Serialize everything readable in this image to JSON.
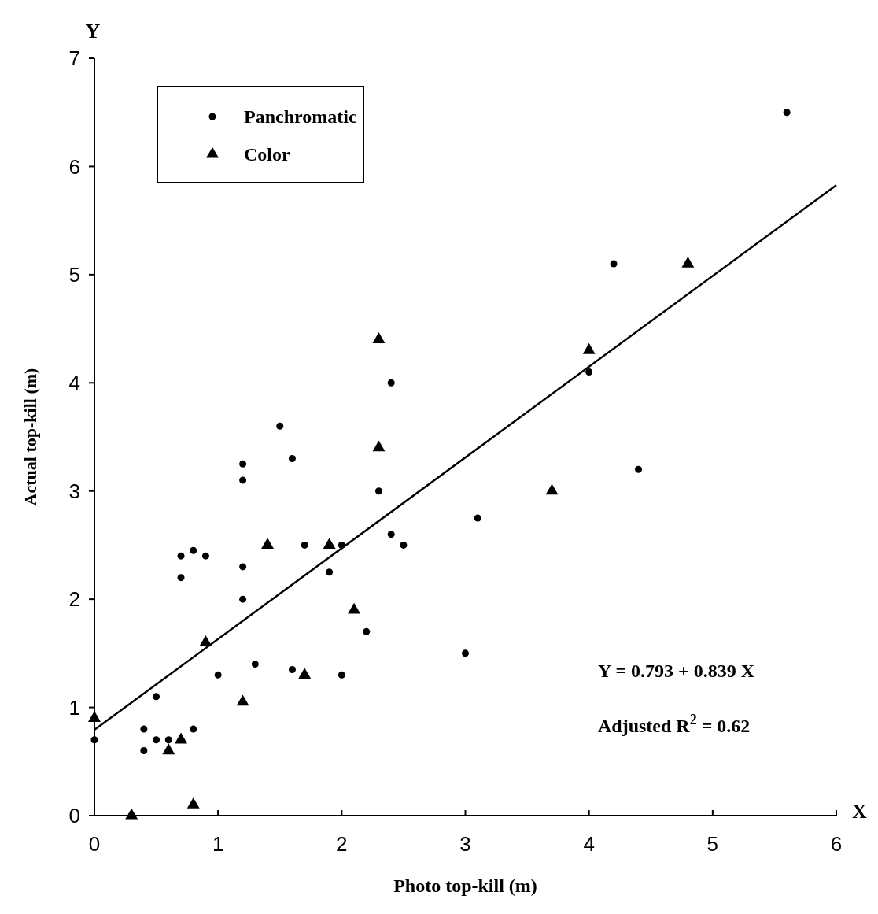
{
  "chart_data": {
    "type": "scatter",
    "xlabel": "Photo top-kill (m)",
    "ylabel": "Actual top-kill (m)",
    "xlim": [
      0,
      6
    ],
    "ylim": [
      0,
      7
    ],
    "xticks": [
      0,
      1,
      2,
      3,
      4,
      5,
      6
    ],
    "yticks": [
      0,
      1,
      2,
      3,
      4,
      5,
      6,
      7
    ],
    "grid": false,
    "legend": "top left",
    "series": [
      {
        "name": "Panchromatic",
        "color": "#000000",
        "marker": "circle",
        "x": [
          0,
          0.4,
          0.4,
          0.5,
          0.5,
          0.6,
          0.7,
          0.7,
          0.8,
          0.8,
          0.9,
          1.0,
          1.2,
          1.2,
          1.2,
          1.2,
          1.3,
          1.5,
          1.6,
          1.6,
          1.7,
          1.9,
          2.0,
          2.0,
          2.2,
          2.3,
          2.4,
          2.4,
          2.5,
          3.0,
          3.1,
          4.0,
          4.2,
          4.4,
          5.6
        ],
        "values": [
          0.7,
          0.8,
          0.6,
          1.1,
          0.7,
          0.7,
          2.4,
          2.2,
          2.45,
          0.8,
          2.4,
          1.3,
          3.25,
          3.1,
          2.3,
          2.0,
          1.4,
          3.6,
          3.3,
          1.35,
          2.5,
          2.25,
          2.5,
          1.3,
          1.7,
          3.0,
          4.0,
          2.6,
          2.5,
          1.5,
          2.75,
          4.1,
          5.1,
          3.2,
          6.5
        ]
      },
      {
        "name": "Color",
        "color": "#000000",
        "marker": "triangle",
        "x": [
          0,
          0.3,
          0.6,
          0.7,
          0.8,
          0.9,
          1.2,
          1.4,
          1.7,
          1.9,
          2.1,
          2.3,
          2.3,
          3.7,
          4.0,
          4.8
        ],
        "values": [
          0.9,
          0,
          0.6,
          0.7,
          0.1,
          1.6,
          1.05,
          2.5,
          1.3,
          2.5,
          1.9,
          4.4,
          3.4,
          3.0,
          4.3,
          5.1
        ]
      },
      {
        "type": "line",
        "color": "#000000",
        "marker": "none",
        "line_style": "solid",
        "x": [
          0,
          6
        ],
        "values": [
          0.793,
          5.827
        ]
      }
    ],
    "annotations": [
      "Y",
      "X",
      "Y = 0.793 + 0.839 X",
      "Adjusted R$^{2}$ = 0.62"
    ]
  }
}
